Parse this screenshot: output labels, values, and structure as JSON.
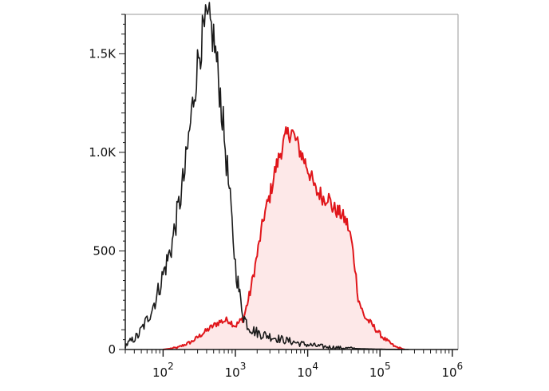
{
  "chart_data": {
    "type": "area",
    "xscale": "log",
    "xlim": [
      30,
      1200000
    ],
    "ylim": [
      0,
      1700
    ],
    "grid": false,
    "legend": "none",
    "yticks": [
      {
        "value": 0,
        "label": "0"
      },
      {
        "value": 500,
        "label": "500"
      },
      {
        "value": 1000,
        "label": "1.0K"
      },
      {
        "value": 1500,
        "label": "1.5K"
      }
    ],
    "xticks": [
      {
        "value": 100,
        "base": "10",
        "exp": "2"
      },
      {
        "value": 1000,
        "base": "10",
        "exp": "3"
      },
      {
        "value": 10000,
        "base": "10",
        "exp": "4"
      },
      {
        "value": 100000,
        "base": "10",
        "exp": "5"
      },
      {
        "value": 1000000,
        "base": "10",
        "exp": "6"
      }
    ],
    "series": [
      {
        "color": "#1a1a1a",
        "fill": "none",
        "x": [
          30,
          45,
          60,
          80,
          100,
          130,
          160,
          200,
          240,
          280,
          320,
          360,
          400,
          450,
          500,
          550,
          620,
          700,
          800,
          900,
          1000,
          1150,
          1300,
          1500,
          1800,
          2200,
          2800,
          3500,
          4500,
          6000,
          8000,
          11000,
          15000,
          20000,
          30000,
          45000,
          70000,
          120000,
          250000
        ],
        "y": [
          20,
          70,
          150,
          260,
          380,
          520,
          700,
          900,
          1150,
          1360,
          1520,
          1600,
          1650,
          1640,
          1580,
          1460,
          1290,
          1080,
          850,
          630,
          430,
          270,
          170,
          120,
          95,
          80,
          70,
          60,
          50,
          40,
          30,
          22,
          16,
          12,
          8,
          5,
          3,
          1,
          0
        ]
      },
      {
        "color": "#e0161b",
        "fill": "#fde8e8",
        "x": [
          100,
          160,
          250,
          350,
          450,
          600,
          800,
          1000,
          1300,
          1600,
          2000,
          2500,
          3000,
          3500,
          4200,
          5000,
          6000,
          7000,
          8000,
          9500,
          11000,
          13000,
          15000,
          17000,
          19000,
          22000,
          26000,
          30000,
          35000,
          40000,
          45000,
          50000,
          60000,
          80000,
          110000,
          160000,
          220000
        ],
        "y": [
          0,
          10,
          40,
          80,
          110,
          140,
          150,
          120,
          160,
          290,
          480,
          680,
          780,
          900,
          1000,
          1080,
          1110,
          1050,
          1000,
          940,
          880,
          800,
          790,
          760,
          780,
          720,
          700,
          680,
          640,
          560,
          420,
          260,
          170,
          120,
          60,
          15,
          0
        ]
      }
    ]
  }
}
